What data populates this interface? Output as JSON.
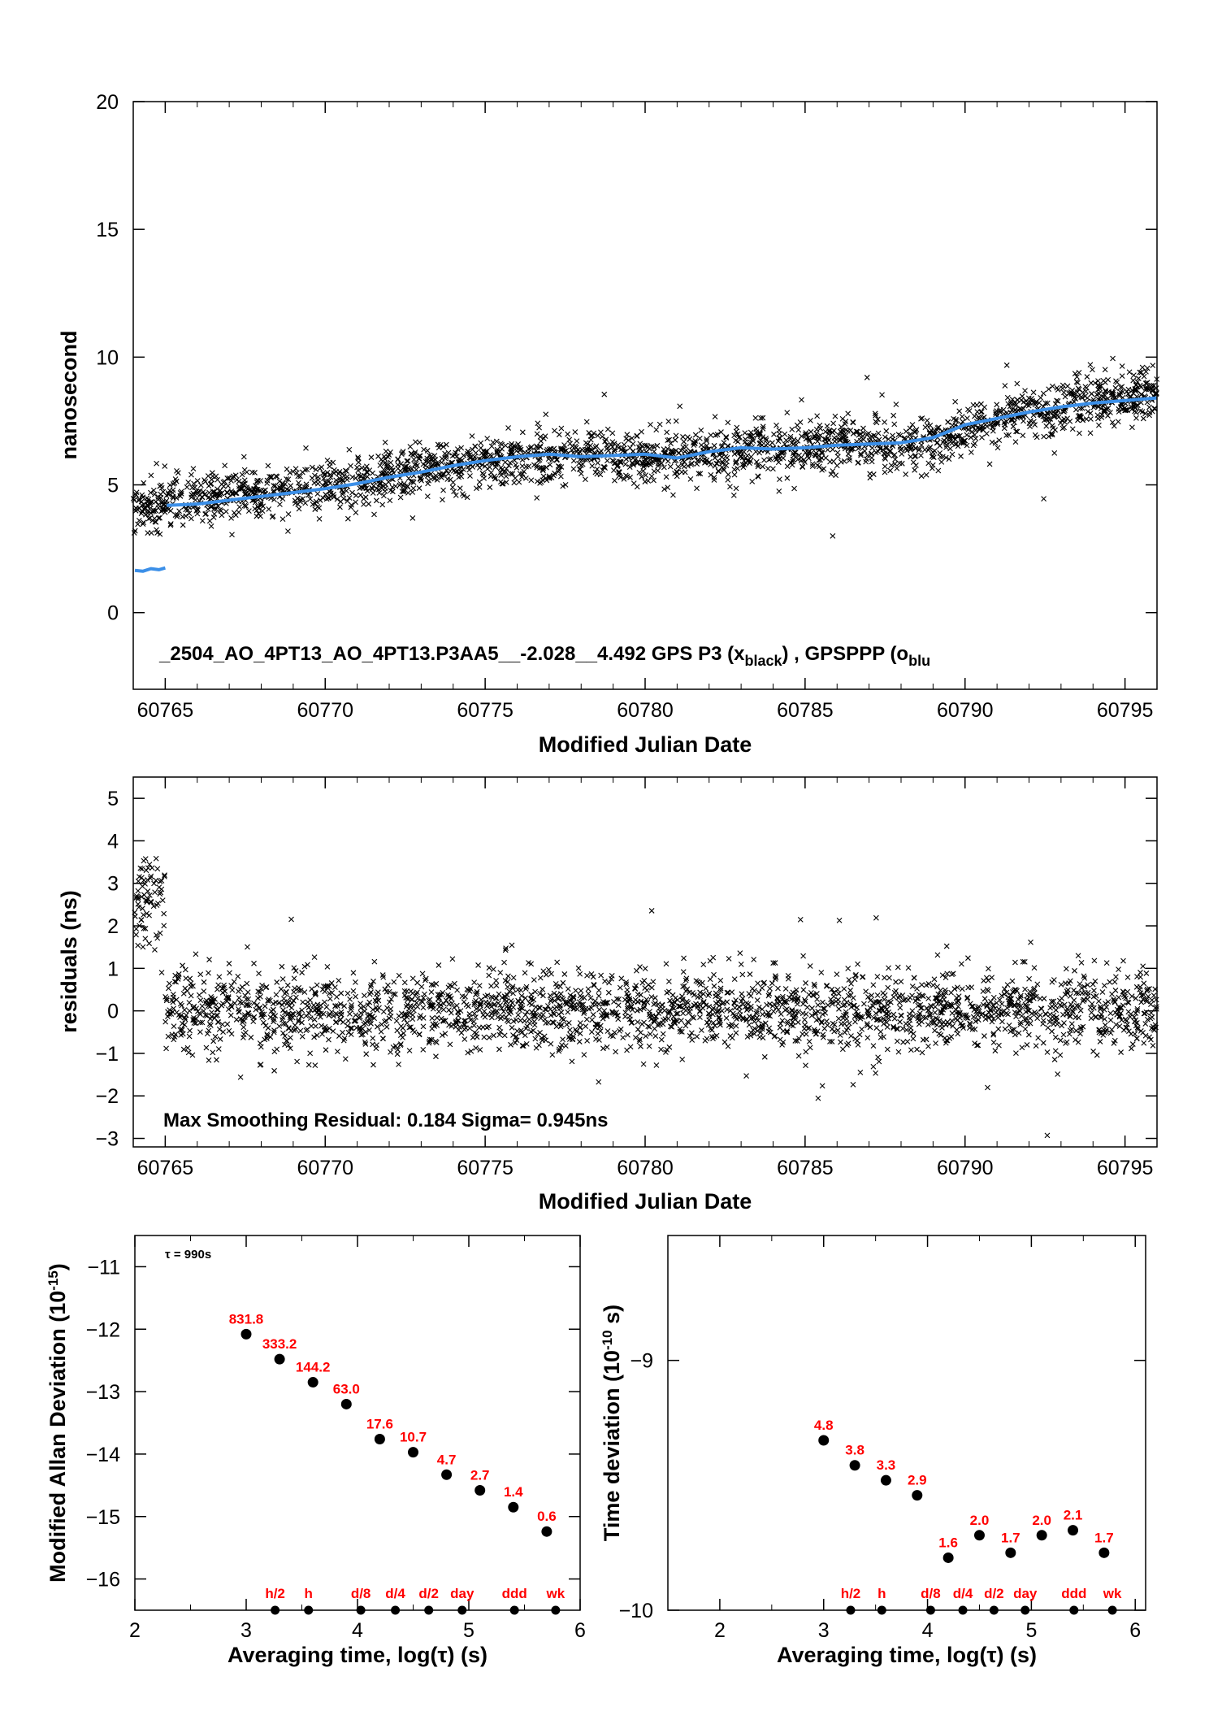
{
  "chart_data": [
    {
      "type": "scatter",
      "id": "time-series",
      "xlabel": "Modified Julian Date",
      "ylabel": "nanosecond",
      "xlim": [
        60764,
        60796
      ],
      "ylim": [
        -3,
        20
      ],
      "xticks": [
        "60765",
        "60770",
        "60775",
        "60780",
        "60785",
        "60790",
        "60795"
      ],
      "yticks": [
        "0",
        "5",
        "10",
        "15",
        "20"
      ],
      "annotation": {
        "main": "_2504_AO_4PT13_AO_4PT13.P3AA5__-2.028__4.492     GPS P3 (x",
        "sub1": "black",
        "mid": ") ,  GPSPPP (o",
        "sub2": "blu"
      },
      "series": [
        {
          "name": "GPS P3",
          "marker": "x",
          "color": "#000000",
          "trend": [
            [
              60764,
              4.1
            ],
            [
              60766,
              4.4
            ],
            [
              60770,
              4.95
            ],
            [
              60775,
              5.9
            ],
            [
              60778,
              6.2
            ],
            [
              60781,
              6.1
            ],
            [
              60785,
              6.5
            ],
            [
              60789,
              6.7
            ],
            [
              60792,
              7.9
            ],
            [
              60796,
              8.5
            ]
          ],
          "noise_sd": 0.5
        },
        {
          "name": "GPSPPP",
          "marker": "o",
          "color": "#3b8fe8",
          "segments": [
            [
              [
                60764.05,
                1.65
              ],
              [
                60764.3,
                1.62
              ],
              [
                60764.55,
                1.72
              ],
              [
                60764.8,
                1.68
              ],
              [
                60765.0,
                1.75
              ]
            ],
            [
              [
                60765.05,
                4.2
              ],
              [
                60766,
                4.25
              ],
              [
                60767,
                4.4
              ],
              [
                60768,
                4.55
              ],
              [
                60769,
                4.7
              ],
              [
                60770,
                4.85
              ],
              [
                60771,
                5.05
              ],
              [
                60772,
                5.3
              ],
              [
                60773,
                5.5
              ],
              [
                60774,
                5.75
              ],
              [
                60775,
                5.95
              ],
              [
                60776,
                6.1
              ],
              [
                60777,
                6.2
              ],
              [
                60778,
                6.1
              ],
              [
                60779,
                6.15
              ],
              [
                60780,
                6.2
              ],
              [
                60781,
                6.05
              ],
              [
                60782,
                6.3
              ],
              [
                60783,
                6.45
              ],
              [
                60784,
                6.4
              ],
              [
                60785,
                6.45
              ],
              [
                60786,
                6.55
              ],
              [
                60787,
                6.6
              ],
              [
                60788,
                6.65
              ],
              [
                60789,
                6.85
              ],
              [
                60790,
                7.35
              ],
              [
                60791,
                7.6
              ],
              [
                60792,
                7.85
              ],
              [
                60793,
                8.05
              ],
              [
                60794,
                8.2
              ],
              [
                60795,
                8.3
              ],
              [
                60796,
                8.4
              ]
            ]
          ]
        }
      ]
    },
    {
      "type": "scatter",
      "id": "residuals",
      "xlabel": "Modified Julian Date",
      "ylabel": "residuals (ns)",
      "xlim": [
        60764,
        60796
      ],
      "ylim": [
        -3.2,
        5.5
      ],
      "xticks": [
        "60765",
        "60770",
        "60775",
        "60780",
        "60785",
        "60790",
        "60795"
      ],
      "yticks": [
        "−3",
        "−2",
        "−1",
        "0",
        "1",
        "2",
        "3",
        "4",
        "5"
      ],
      "annotation": "Max Smoothing Residual: 0.184  Sigma= 0.945ns",
      "series": [
        {
          "name": "residuals",
          "marker": "x",
          "color": "#000000",
          "groups": [
            {
              "x_range": [
                60764,
                60765
              ],
              "mean": 2.6,
              "sd": 0.55
            },
            {
              "x_range": [
                60765,
                60796
              ],
              "mean": 0.0,
              "sd": 0.45
            }
          ]
        }
      ]
    },
    {
      "type": "scatter",
      "id": "mdev",
      "xlabel": "Averaging time, log(τ) (s)",
      "ylabel": "Modified Allan Deviation (10",
      "ylabel_sup": "-15",
      "ylabel_end": ")",
      "xlim": [
        2,
        6
      ],
      "ylim": [
        -16.5,
        -10.5
      ],
      "xticks": [
        "2",
        "3",
        "4",
        "5",
        "6"
      ],
      "yticks": [
        "−16",
        "−15",
        "−14",
        "−13",
        "−12",
        "−11"
      ],
      "tau_label": "τ = 990s",
      "points": [
        {
          "x": 3.0,
          "y": -12.08,
          "label": "831.8"
        },
        {
          "x": 3.3,
          "y": -12.48,
          "label": "333.2"
        },
        {
          "x": 3.6,
          "y": -12.85,
          "label": "144.2"
        },
        {
          "x": 3.9,
          "y": -13.2,
          "label": "63.0"
        },
        {
          "x": 4.2,
          "y": -13.76,
          "label": "17.6"
        },
        {
          "x": 4.5,
          "y": -13.97,
          "label": "10.7"
        },
        {
          "x": 4.8,
          "y": -14.33,
          "label": "4.7"
        },
        {
          "x": 5.1,
          "y": -14.58,
          "label": "2.7"
        },
        {
          "x": 5.4,
          "y": -14.85,
          "label": "1.4"
        },
        {
          "x": 5.7,
          "y": -15.24,
          "label": "0.6"
        }
      ],
      "markers": [
        {
          "x": 3.26,
          "label": "h/2"
        },
        {
          "x": 3.56,
          "label": "h"
        },
        {
          "x": 4.03,
          "label": "d/8"
        },
        {
          "x": 4.34,
          "label": "d/4"
        },
        {
          "x": 4.64,
          "label": "d/2"
        },
        {
          "x": 4.94,
          "label": "day"
        },
        {
          "x": 5.41,
          "label": "ddd"
        },
        {
          "x": 5.78,
          "label": "wk"
        }
      ]
    },
    {
      "type": "scatter",
      "id": "tdev",
      "xlabel": "Averaging time, log(τ) (s)",
      "ylabel": "Time deviation (10",
      "ylabel_sup": "-10",
      "ylabel_end": " s)",
      "xlim": [
        1.5,
        6.1
      ],
      "ylim": [
        -10,
        -8.5
      ],
      "xticks": [
        "2",
        "3",
        "4",
        "5",
        "6"
      ],
      "yticks": [
        "−10",
        "−9"
      ],
      "points": [
        {
          "x": 3.0,
          "y": -9.32,
          "label": "4.8"
        },
        {
          "x": 3.3,
          "y": -9.42,
          "label": "3.8"
        },
        {
          "x": 3.6,
          "y": -9.48,
          "label": "3.3"
        },
        {
          "x": 3.9,
          "y": -9.54,
          "label": "2.9"
        },
        {
          "x": 4.2,
          "y": -9.79,
          "label": "1.6"
        },
        {
          "x": 4.5,
          "y": -9.7,
          "label": "2.0"
        },
        {
          "x": 4.8,
          "y": -9.77,
          "label": "1.7"
        },
        {
          "x": 5.1,
          "y": -9.7,
          "label": "2.0"
        },
        {
          "x": 5.4,
          "y": -9.68,
          "label": "2.1"
        },
        {
          "x": 5.7,
          "y": -9.77,
          "label": "1.7"
        }
      ],
      "markers": [
        {
          "x": 3.26,
          "label": "h/2"
        },
        {
          "x": 3.56,
          "label": "h"
        },
        {
          "x": 4.03,
          "label": "d/8"
        },
        {
          "x": 4.34,
          "label": "d/4"
        },
        {
          "x": 4.64,
          "label": "d/2"
        },
        {
          "x": 4.94,
          "label": "day"
        },
        {
          "x": 5.41,
          "label": "ddd"
        },
        {
          "x": 5.78,
          "label": "wk"
        }
      ]
    }
  ]
}
